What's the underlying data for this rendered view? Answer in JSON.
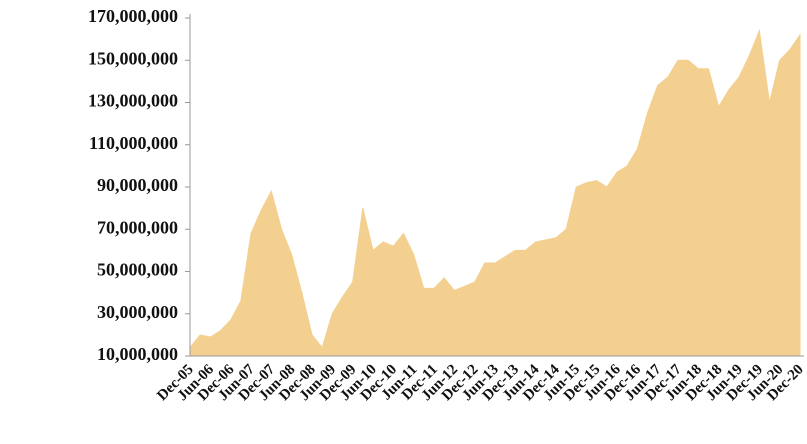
{
  "chart_data": {
    "type": "area",
    "color": "#f3d08f",
    "categories": [
      "Dec-05",
      null,
      "Jun-06",
      null,
      "Dec-06",
      null,
      "Jun-07",
      null,
      "Dec-07",
      null,
      "Jun-08",
      null,
      "Dec-08",
      null,
      "Jun-09",
      null,
      "Dec-09",
      null,
      "Jun-10",
      null,
      "Dec-10",
      null,
      "Jun-11",
      null,
      "Dec-11",
      null,
      "Jun-12",
      null,
      "Dec-12",
      null,
      "Jun-13",
      null,
      "Dec-13",
      null,
      "Jun-14",
      null,
      "Dec-14",
      null,
      "Jun-15",
      null,
      "Dec-15",
      null,
      "Jun-16",
      null,
      "Dec-16",
      null,
      "Jun-17",
      null,
      "Dec-17",
      null,
      "Jun-18",
      null,
      "Dec-18",
      null,
      "Jun-19",
      null,
      "Dec-19",
      null,
      "Jun-20",
      null,
      "Dec-20"
    ],
    "values": [
      14000000,
      20000000,
      19000000,
      22000000,
      27000000,
      36000000,
      68000000,
      79000000,
      88000000,
      70000000,
      58000000,
      40000000,
      20000000,
      14000000,
      30000000,
      38000000,
      45000000,
      80000000,
      60000000,
      64000000,
      62000000,
      68000000,
      58000000,
      42000000,
      42000000,
      47000000,
      41000000,
      43000000,
      45000000,
      54000000,
      54000000,
      57000000,
      60000000,
      60000000,
      64000000,
      65000000,
      66000000,
      70000000,
      90000000,
      92000000,
      93000000,
      90000000,
      97000000,
      100000000,
      108000000,
      125000000,
      138000000,
      142000000,
      150000000,
      150000000,
      146000000,
      146000000,
      128000000,
      136000000,
      142000000,
      152000000,
      164000000,
      130000000,
      150000000,
      155000000,
      162000000
    ],
    "ylim": [
      10000000,
      170000000
    ],
    "yticks": [
      {
        "value": 10000000,
        "label": "10,000,000"
      },
      {
        "value": 30000000,
        "label": "30,000,000"
      },
      {
        "value": 50000000,
        "label": "50,000,000"
      },
      {
        "value": 70000000,
        "label": "70,000,000"
      },
      {
        "value": 90000000,
        "label": "90,000,000"
      },
      {
        "value": 110000000,
        "label": "110,000,000"
      },
      {
        "value": 130000000,
        "label": "130,000,000"
      },
      {
        "value": 150000000,
        "label": "150,000,000"
      },
      {
        "value": 170000000,
        "label": "170,000,000"
      }
    ]
  }
}
